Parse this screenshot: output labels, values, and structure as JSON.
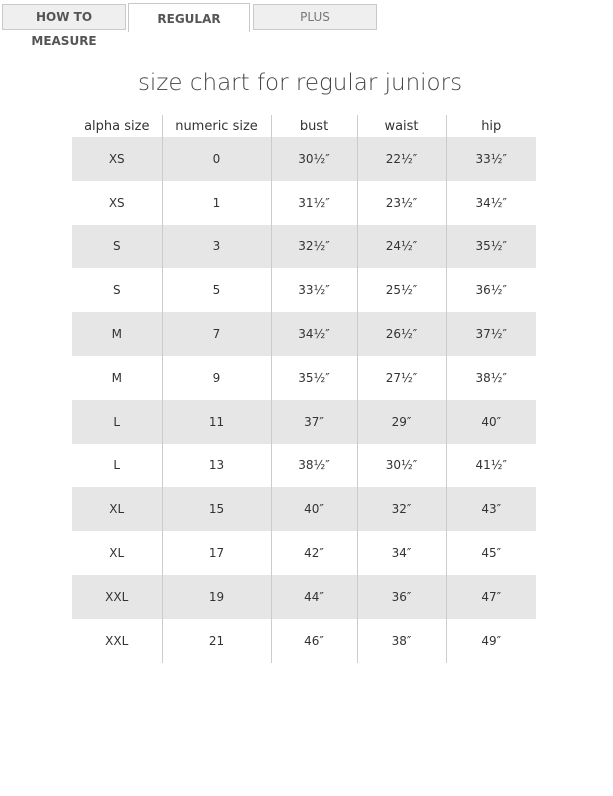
{
  "tabs": [
    {
      "label": "HOW TO MEASURE",
      "active": false
    },
    {
      "label": "REGULAR",
      "active": true
    },
    {
      "label": "PLUS",
      "active": false
    }
  ],
  "title": "size chart for regular juniors",
  "table": {
    "headers": [
      "alpha size",
      "numeric size",
      "bust",
      "waist",
      "hip"
    ],
    "rows": [
      [
        "XS",
        "0",
        "30½″",
        "22½″",
        "33½″"
      ],
      [
        "XS",
        "1",
        "31½″",
        "23½″",
        "34½″"
      ],
      [
        "S",
        "3",
        "32½″",
        "24½″",
        "35½″"
      ],
      [
        "S",
        "5",
        "33½″",
        "25½″",
        "36½″"
      ],
      [
        "M",
        "7",
        "34½″",
        "26½″",
        "37½″"
      ],
      [
        "M",
        "9",
        "35½″",
        "27½″",
        "38½″"
      ],
      [
        "L",
        "11",
        "37″",
        "29″",
        "40″"
      ],
      [
        "L",
        "13",
        "38½″",
        "30½″",
        "41½″"
      ],
      [
        "XL",
        "15",
        "40″",
        "32″",
        "43″"
      ],
      [
        "XL",
        "17",
        "42″",
        "34″",
        "45″"
      ],
      [
        "XXL",
        "19",
        "44″",
        "36″",
        "47″"
      ],
      [
        "XXL",
        "21",
        "46″",
        "38″",
        "49″"
      ]
    ]
  }
}
